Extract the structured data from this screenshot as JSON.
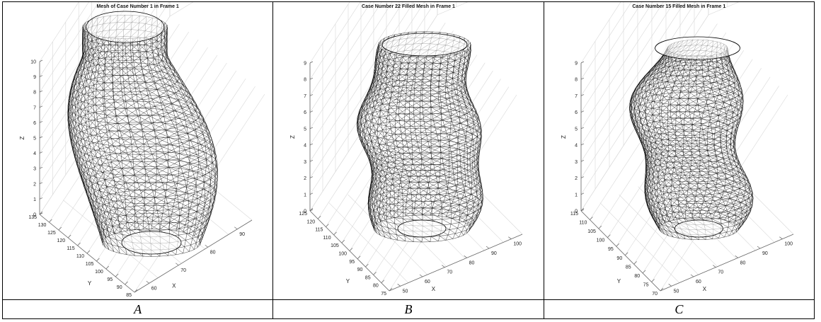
{
  "figure": {
    "panels": [
      {
        "title": "Mesh of Case Number 1   in Frame 1",
        "caption": "A",
        "z_ticks": [
          "0",
          "1",
          "2",
          "3",
          "4",
          "5",
          "6",
          "7",
          "8",
          "9",
          "10"
        ],
        "y_ticks": [
          "135",
          "130",
          "125",
          "120",
          "115",
          "110",
          "105",
          "100",
          "95",
          "90",
          "85"
        ],
        "x_ticks": [
          "60",
          "70",
          "80",
          "90"
        ],
        "z_label": "Z",
        "y_label": "Y",
        "x_label": "X"
      },
      {
        "title": "Case Number 22 Filled Mesh in Frame 1",
        "caption": "B",
        "z_ticks": [
          "0",
          "1",
          "2",
          "3",
          "4",
          "5",
          "6",
          "7",
          "8",
          "9"
        ],
        "y_ticks": [
          "125",
          "120",
          "115",
          "110",
          "105",
          "100",
          "95",
          "90",
          "85",
          "80",
          "75"
        ],
        "x_ticks": [
          "50",
          "60",
          "70",
          "80",
          "90",
          "100"
        ],
        "z_label": "Z",
        "y_label": "Y",
        "x_label": "X"
      },
      {
        "title": "Case Number 15 Filled Mesh in Frame 1",
        "caption": "C",
        "z_ticks": [
          "0",
          "1",
          "2",
          "3",
          "4",
          "5",
          "6",
          "7",
          "8",
          "9"
        ],
        "y_ticks": [
          "115",
          "110",
          "105",
          "100",
          "95",
          "90",
          "85",
          "80",
          "75",
          "70"
        ],
        "x_ticks": [
          "50",
          "60",
          "70",
          "80",
          "90",
          "100"
        ],
        "z_label": "Z",
        "y_label": "Y",
        "x_label": "X"
      }
    ]
  }
}
